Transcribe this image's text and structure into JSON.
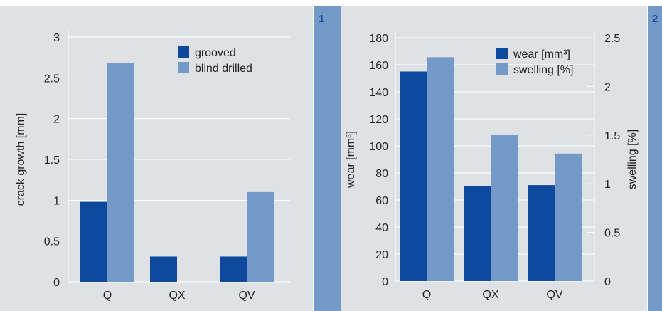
{
  "colors": {
    "dark_bar": "#0d4a9e",
    "light_bar": "#7399c6",
    "panel_bg": "#dfe1e4",
    "strip": "#7399c6"
  },
  "panel1": {
    "number": "1"
  },
  "panel2": {
    "number": "2"
  },
  "chart_data": [
    {
      "type": "bar",
      "categories": [
        "Q",
        "QX",
        "QV"
      ],
      "series": [
        {
          "name": "grooved",
          "values": [
            0.98,
            0.31,
            0.31
          ]
        },
        {
          "name": "blind drilled",
          "values": [
            2.68,
            null,
            1.1
          ]
        }
      ],
      "ylabel": "crack growth [mm]",
      "ylim": [
        0,
        3
      ],
      "yticks": [
        "0",
        "0.5",
        "1",
        "1.5",
        "2",
        "2.5",
        "3"
      ],
      "grid": true,
      "legend": "top-right"
    },
    {
      "type": "bar",
      "categories": [
        "Q",
        "QX",
        "QV"
      ],
      "series": [
        {
          "name": "wear [mm³]",
          "axis": "left",
          "values": [
            155,
            70,
            71
          ]
        },
        {
          "name": "swelling [%]",
          "axis": "right",
          "values": [
            2.3,
            1.5,
            1.31
          ]
        }
      ],
      "ylabel": "wear [mm³]",
      "ylim": [
        0,
        180
      ],
      "yticks": [
        "0",
        "20",
        "40",
        "60",
        "80",
        "100",
        "120",
        "140",
        "160",
        "180"
      ],
      "y2label": "swelling [%]",
      "y2lim": [
        0,
        2.5
      ],
      "y2ticks": [
        "0",
        "0.5",
        "1",
        "1.5",
        "2",
        "2.5"
      ],
      "grid": true,
      "legend": "top-right"
    }
  ]
}
